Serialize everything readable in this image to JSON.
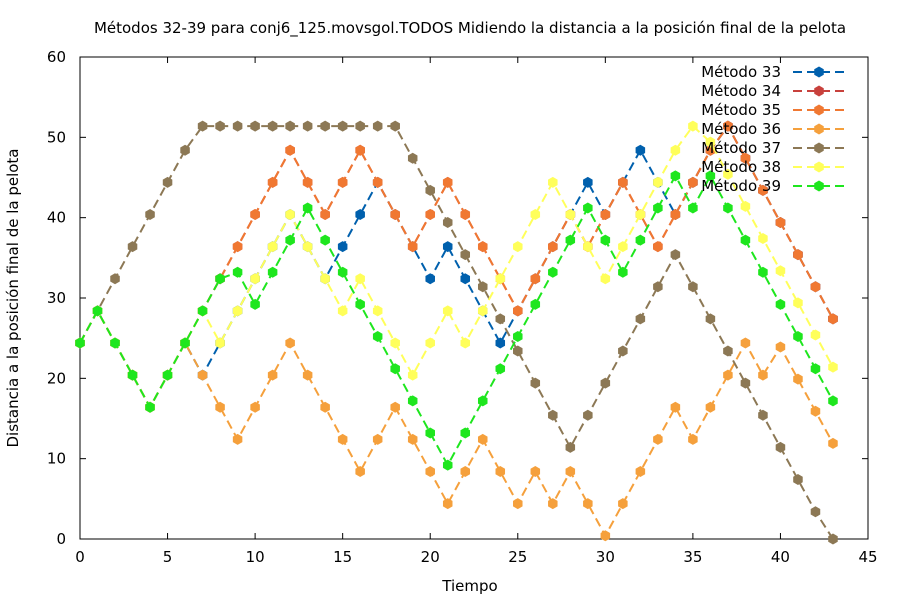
{
  "chart_data": {
    "type": "line",
    "title": "Métodos 32-39 para conj6_125.movsgol.TODOS Midiendo la distancia a la posición final de la pelota",
    "xlabel": "Tiempo",
    "ylabel": "Distancia a la posición final de la pelota",
    "xlim": [
      0,
      45
    ],
    "ylim": [
      0,
      60
    ],
    "xticks": [
      0,
      5,
      10,
      15,
      20,
      25,
      30,
      35,
      40,
      45
    ],
    "yticks": [
      0,
      10,
      20,
      30,
      40,
      50,
      60
    ],
    "legend_position": "top-right",
    "grid": false,
    "x": [
      0,
      1,
      2,
      3,
      4,
      5,
      6,
      7,
      8,
      9,
      10,
      11,
      12,
      13,
      14,
      15,
      16,
      17,
      18,
      19,
      20,
      21,
      22,
      23,
      24,
      25,
      26,
      27,
      28,
      29,
      30,
      31,
      32,
      33,
      34,
      35,
      36,
      37,
      38,
      39,
      40,
      41,
      42,
      43
    ],
    "series": [
      {
        "name": "Método 33",
        "color": "#0060ad",
        "marker": "hexagon-icon",
        "values": [
          24.4,
          28.4,
          24.4,
          20.4,
          16.4,
          20.4,
          24.4,
          20.4,
          24.4,
          28.4,
          32.4,
          36.4,
          40.4,
          36.4,
          32.4,
          36.4,
          40.4,
          44.4,
          40.4,
          36.4,
          32.4,
          36.4,
          32.4,
          28.4,
          24.4,
          28.4,
          32.4,
          36.4,
          40.4,
          44.4,
          40.4,
          44.4,
          48.4,
          44.4,
          40.4,
          44.4,
          48.4,
          51.4,
          47.4,
          43.4,
          39.4,
          35.4,
          31.4,
          27.4
        ]
      },
      {
        "name": "Método 34",
        "color": "#c8413c",
        "marker": "hexagon-icon",
        "values": [
          24.4,
          28.4,
          24.4,
          20.4,
          16.4,
          20.4,
          24.4,
          28.4,
          32.4,
          36.4,
          40.4,
          44.4,
          48.4,
          44.4,
          40.4,
          44.4,
          48.4,
          44.4,
          40.4,
          36.4,
          40.4,
          44.4,
          40.4,
          36.4,
          32.4,
          28.4,
          32.4,
          36.4,
          40.4,
          36.4,
          40.4,
          44.4,
          40.4,
          36.4,
          40.4,
          44.4,
          48.4,
          51.4,
          47.4,
          43.4,
          39.4,
          35.4,
          31.4,
          27.4
        ]
      },
      {
        "name": "Método 35",
        "color": "#f07832",
        "marker": "hexagon-icon",
        "values": [
          24.4,
          28.4,
          24.4,
          20.4,
          16.4,
          20.4,
          24.4,
          28.4,
          32.4,
          36.4,
          40.4,
          44.4,
          48.4,
          44.4,
          40.4,
          44.4,
          48.4,
          44.4,
          40.4,
          36.4,
          40.4,
          44.4,
          40.4,
          36.4,
          32.4,
          28.4,
          32.4,
          36.4,
          40.4,
          36.4,
          40.4,
          44.4,
          40.4,
          36.4,
          40.4,
          44.4,
          48.4,
          51.4,
          47.4,
          43.4,
          39.4,
          35.4,
          31.4,
          27.4
        ]
      },
      {
        "name": "Método 36",
        "color": "#f5a03c",
        "marker": "hexagon-icon",
        "values": [
          24.4,
          28.4,
          24.4,
          20.4,
          16.4,
          20.4,
          24.4,
          20.4,
          16.4,
          12.4,
          16.4,
          20.4,
          24.4,
          20.4,
          16.4,
          12.4,
          8.4,
          12.4,
          16.4,
          12.4,
          8.4,
          4.4,
          8.4,
          12.4,
          8.4,
          4.4,
          8.4,
          4.4,
          8.4,
          4.4,
          0.4,
          4.4,
          8.4,
          12.4,
          16.4,
          12.4,
          16.4,
          20.4,
          24.4,
          20.4,
          23.9,
          19.9,
          15.9,
          11.9
        ]
      },
      {
        "name": "Método 37",
        "color": "#8c7855",
        "marker": "hexagon-icon",
        "values": [
          24.4,
          28.4,
          32.4,
          36.4,
          40.4,
          44.4,
          48.4,
          51.4,
          51.4,
          51.4,
          51.4,
          51.4,
          51.4,
          51.4,
          51.4,
          51.4,
          51.4,
          51.4,
          51.4,
          47.4,
          43.4,
          39.4,
          35.4,
          31.4,
          27.4,
          23.4,
          19.4,
          15.4,
          11.4,
          15.4,
          19.4,
          23.4,
          27.4,
          31.4,
          35.4,
          31.4,
          27.4,
          23.4,
          19.4,
          15.4,
          11.4,
          7.4,
          3.4,
          0.0
        ]
      },
      {
        "name": "Método 38",
        "color": "#ffff5a",
        "marker": "hexagon-icon",
        "values": [
          24.4,
          28.4,
          24.4,
          20.4,
          16.4,
          20.4,
          24.4,
          28.4,
          24.4,
          28.4,
          32.4,
          36.4,
          40.4,
          36.4,
          32.4,
          28.4,
          32.4,
          28.4,
          24.4,
          20.4,
          24.4,
          28.4,
          24.4,
          28.4,
          32.4,
          36.4,
          40.4,
          44.4,
          40.4,
          36.4,
          32.4,
          36.4,
          40.4,
          44.4,
          48.4,
          51.4,
          49.4,
          45.4,
          41.4,
          37.4,
          33.4,
          29.4,
          25.4,
          21.4
        ]
      },
      {
        "name": "Método 39",
        "color": "#1ee61e",
        "marker": "hexagon-icon",
        "values": [
          24.4,
          28.4,
          24.4,
          20.4,
          16.4,
          20.4,
          24.4,
          28.4,
          32.4,
          33.2,
          29.2,
          33.2,
          37.2,
          41.2,
          37.2,
          33.2,
          29.2,
          25.2,
          21.2,
          17.2,
          13.2,
          9.2,
          13.2,
          17.2,
          21.2,
          25.2,
          29.2,
          33.2,
          37.2,
          41.2,
          37.2,
          33.2,
          37.2,
          41.2,
          45.2,
          41.2,
          45.2,
          41.2,
          37.2,
          33.2,
          29.2,
          25.2,
          21.2,
          17.2
        ]
      }
    ]
  }
}
